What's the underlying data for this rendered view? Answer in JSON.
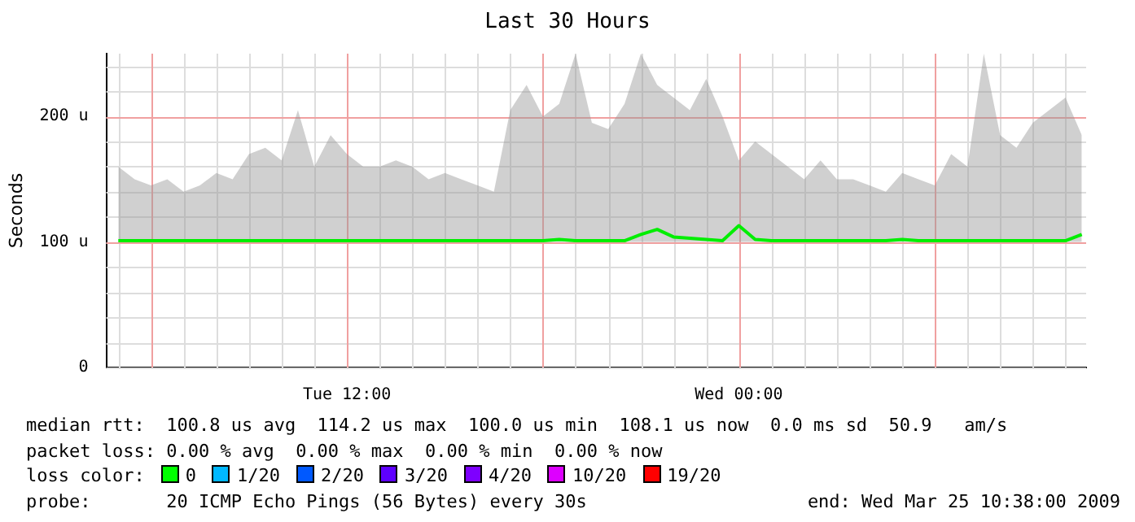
{
  "chart_data": {
    "type": "line",
    "title": "Last 30 Hours",
    "ylabel": "Seconds",
    "xlim": [
      "2009-03-24T04:38",
      "2009-03-25T10:38"
    ],
    "xticks": [
      {
        "value": "2009-03-24T06:00",
        "label": null
      },
      {
        "value": "2009-03-24T12:00",
        "label": "Tue 12:00"
      },
      {
        "value": "2009-03-24T18:00",
        "label": null
      },
      {
        "value": "2009-03-25T00:00",
        "label": "Wed 00:00"
      },
      {
        "value": "2009-03-25T06:00",
        "label": null
      }
    ],
    "ylim": [
      0,
      250
    ],
    "yticks": [
      {
        "value": 0,
        "label": "0"
      },
      {
        "value": 100,
        "label": "100 u"
      },
      {
        "value": 200,
        "label": "200 u"
      }
    ],
    "grid": true,
    "legend": false,
    "marker": "none",
    "line_style": "solid",
    "x": [
      "2009-03-24T05:00",
      "2009-03-24T05:30",
      "2009-03-24T06:00",
      "2009-03-24T06:30",
      "2009-03-24T07:00",
      "2009-03-24T07:30",
      "2009-03-24T08:00",
      "2009-03-24T08:30",
      "2009-03-24T09:00",
      "2009-03-24T09:30",
      "2009-03-24T10:00",
      "2009-03-24T10:30",
      "2009-03-24T11:00",
      "2009-03-24T11:30",
      "2009-03-24T12:00",
      "2009-03-24T12:30",
      "2009-03-24T13:00",
      "2009-03-24T13:30",
      "2009-03-24T14:00",
      "2009-03-24T14:30",
      "2009-03-24T15:00",
      "2009-03-24T15:30",
      "2009-03-24T16:00",
      "2009-03-24T16:30",
      "2009-03-24T17:00",
      "2009-03-24T17:30",
      "2009-03-24T18:00",
      "2009-03-24T18:30",
      "2009-03-24T19:00",
      "2009-03-24T19:30",
      "2009-03-24T20:00",
      "2009-03-24T20:30",
      "2009-03-24T21:00",
      "2009-03-24T21:30",
      "2009-03-24T22:00",
      "2009-03-24T22:30",
      "2009-03-24T23:00",
      "2009-03-24T23:30",
      "2009-03-25T00:00",
      "2009-03-25T00:30",
      "2009-03-25T01:00",
      "2009-03-25T01:30",
      "2009-03-25T02:00",
      "2009-03-25T02:30",
      "2009-03-25T03:00",
      "2009-03-25T03:30",
      "2009-03-25T04:00",
      "2009-03-25T04:30",
      "2009-03-25T05:00",
      "2009-03-25T05:30",
      "2009-03-25T06:00",
      "2009-03-25T06:30",
      "2009-03-25T07:00",
      "2009-03-25T07:30",
      "2009-03-25T08:00",
      "2009-03-25T08:30",
      "2009-03-25T09:00",
      "2009-03-25T09:30",
      "2009-03-25T10:00",
      "2009-03-25T10:30"
    ],
    "series": [
      {
        "color": "#00ee00",
        "values": [
          101,
          101,
          101,
          101,
          101,
          101,
          101,
          101,
          101,
          101,
          101,
          101,
          101,
          101,
          101,
          101,
          101,
          101,
          101,
          101,
          101,
          101,
          101,
          101,
          101,
          101,
          101,
          102,
          101,
          101,
          101,
          101,
          106,
          110,
          104,
          103,
          102,
          101,
          113,
          102,
          101,
          101,
          101,
          101,
          101,
          101,
          101,
          101,
          102,
          101,
          101,
          101,
          101,
          101,
          101,
          101,
          101,
          101,
          101,
          106
        ],
        "lower": [
          100,
          100,
          100,
          100,
          100,
          100,
          100,
          100,
          100,
          100,
          100,
          100,
          100,
          100,
          100,
          100,
          100,
          100,
          100,
          100,
          100,
          100,
          100,
          100,
          100,
          100,
          100,
          100,
          100,
          100,
          100,
          100,
          100,
          100,
          100,
          100,
          100,
          100,
          100,
          100,
          100,
          100,
          100,
          100,
          100,
          100,
          100,
          100,
          100,
          100,
          100,
          100,
          100,
          100,
          100,
          100,
          100,
          100,
          100,
          100
        ],
        "upper": [
          160,
          150,
          145,
          150,
          140,
          145,
          155,
          150,
          170,
          175,
          165,
          205,
          160,
          185,
          170,
          160,
          160,
          165,
          160,
          150,
          155,
          150,
          145,
          140,
          205,
          225,
          200,
          210,
          250,
          195,
          190,
          210,
          250,
          225,
          215,
          205,
          230,
          200,
          165,
          180,
          170,
          160,
          150,
          165,
          150,
          150,
          145,
          140,
          155,
          150,
          145,
          170,
          160,
          250,
          185,
          175,
          195,
          205,
          215,
          185
        ]
      }
    ],
    "annotations": [
      "median rtt:  100.8 us avg  114.2 us max  100.0 us min  108.1 us now  0.0 ms sd  50.9   am/s",
      "packet loss: 0.00 % avg  0.00 % max  0.00 % min  0.00 % now",
      "loss color:",
      "0",
      "1/20",
      "2/20",
      "3/20",
      "4/20",
      "10/20",
      "19/20",
      "probe:       20 ICMP Echo Pings (56 Bytes) every 30s",
      "end: Wed Mar 25 10:38:00 2009"
    ]
  }
}
